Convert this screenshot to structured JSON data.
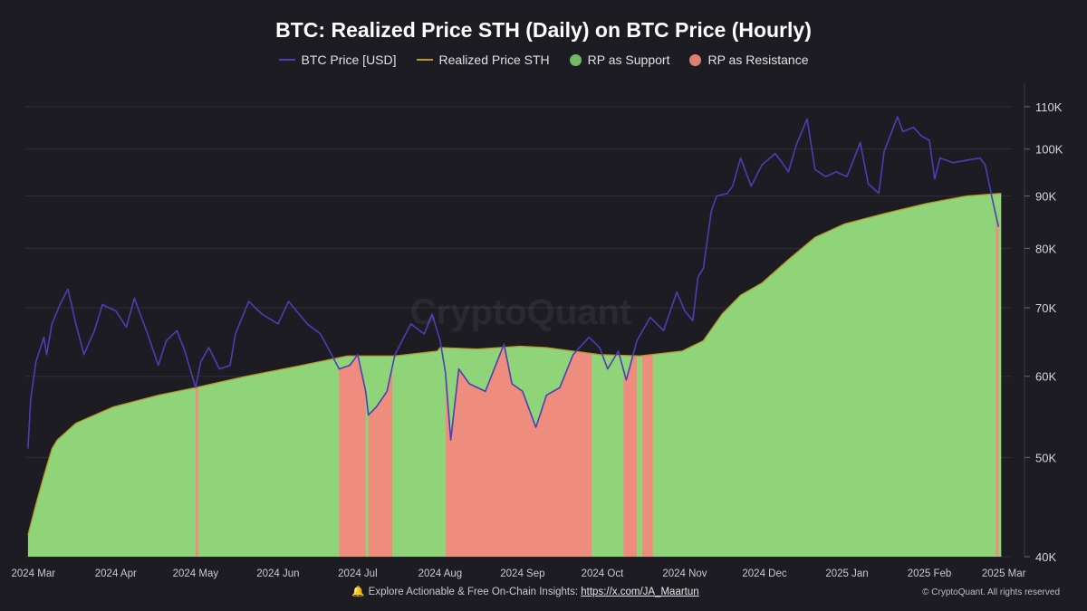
{
  "chart_data": {
    "type": "area",
    "title": "BTC: Realized Price STH (Daily) on BTC Price (Hourly)",
    "legend": [
      "BTC Price [USD]",
      "Realized Price STH",
      "RP as Support",
      "RP as Resistance"
    ],
    "legend_placement": "top-center",
    "y_scale": "log",
    "ylim": [
      40000,
      115000
    ],
    "y_ticks": [
      40000,
      50000,
      60000,
      70000,
      80000,
      90000,
      100000,
      110000
    ],
    "y_tick_labels": [
      "40K",
      "50K",
      "60K",
      "70K",
      "80K",
      "90K",
      "100K",
      "110K"
    ],
    "x_range": [
      "2024-02-27",
      "2025-03-04"
    ],
    "x_ticks": [
      "2024-03-01",
      "2024-04-01",
      "2024-05-01",
      "2024-06-01",
      "2024-07-01",
      "2024-08-01",
      "2024-09-01",
      "2024-10-01",
      "2024-11-01",
      "2024-12-01",
      "2025-01-01",
      "2025-02-01",
      "2025-03-01"
    ],
    "x_tick_labels": [
      "2024 Mar",
      "2024 Apr",
      "2024 May",
      "2024 Jun",
      "2024 Jul",
      "2024 Aug",
      "2024 Sep",
      "2024 Oct",
      "2024 Nov",
      "2024 Dec",
      "2025 Jan",
      "2025 Feb",
      "2025 Mar"
    ],
    "grid": "horizontal",
    "series": [
      {
        "name": "BTC Price [USD]",
        "color": "#4b3fb5",
        "points": [
          [
            "2024-02-28",
            51000
          ],
          [
            "2024-02-29",
            57000
          ],
          [
            "2024-03-02",
            62000
          ],
          [
            "2024-03-05",
            65500
          ],
          [
            "2024-03-06",
            63000
          ],
          [
            "2024-03-08",
            67500
          ],
          [
            "2024-03-11",
            70500
          ],
          [
            "2024-03-14",
            73000
          ],
          [
            "2024-03-17",
            67500
          ],
          [
            "2024-03-20",
            63000
          ],
          [
            "2024-03-24",
            66500
          ],
          [
            "2024-03-27",
            70500
          ],
          [
            "2024-04-01",
            69500
          ],
          [
            "2024-04-05",
            67000
          ],
          [
            "2024-04-08",
            71500
          ],
          [
            "2024-04-13",
            66000
          ],
          [
            "2024-04-17",
            61500
          ],
          [
            "2024-04-20",
            65000
          ],
          [
            "2024-04-24",
            66500
          ],
          [
            "2024-04-27",
            63500
          ],
          [
            "2024-05-01",
            58500
          ],
          [
            "2024-05-03",
            62000
          ],
          [
            "2024-05-06",
            64000
          ],
          [
            "2024-05-10",
            61000
          ],
          [
            "2024-05-14",
            61500
          ],
          [
            "2024-05-16",
            66000
          ],
          [
            "2024-05-21",
            71000
          ],
          [
            "2024-05-26",
            69000
          ],
          [
            "2024-06-01",
            67500
          ],
          [
            "2024-06-05",
            71000
          ],
          [
            "2024-06-08",
            69500
          ],
          [
            "2024-06-12",
            67500
          ],
          [
            "2024-06-17",
            66000
          ],
          [
            "2024-06-24",
            61000
          ],
          [
            "2024-06-28",
            61500
          ],
          [
            "2024-07-01",
            63000
          ],
          [
            "2024-07-04",
            58000
          ],
          [
            "2024-07-05",
            55000
          ],
          [
            "2024-07-08",
            56000
          ],
          [
            "2024-07-12",
            58000
          ],
          [
            "2024-07-15",
            63000
          ],
          [
            "2024-07-21",
            67500
          ],
          [
            "2024-07-26",
            66000
          ],
          [
            "2024-07-29",
            69000
          ],
          [
            "2024-08-01",
            65000
          ],
          [
            "2024-08-03",
            60500
          ],
          [
            "2024-08-05",
            52000
          ],
          [
            "2024-08-08",
            61000
          ],
          [
            "2024-08-12",
            59000
          ],
          [
            "2024-08-18",
            58000
          ],
          [
            "2024-08-25",
            64500
          ],
          [
            "2024-08-28",
            59000
          ],
          [
            "2024-09-01",
            58000
          ],
          [
            "2024-09-06",
            53500
          ],
          [
            "2024-09-10",
            57500
          ],
          [
            "2024-09-15",
            58500
          ],
          [
            "2024-09-20",
            63000
          ],
          [
            "2024-09-26",
            65500
          ],
          [
            "2024-09-30",
            64000
          ],
          [
            "2024-10-03",
            61000
          ],
          [
            "2024-10-07",
            63500
          ],
          [
            "2024-10-10",
            59500
          ],
          [
            "2024-10-14",
            65000
          ],
          [
            "2024-10-19",
            68500
          ],
          [
            "2024-10-24",
            66500
          ],
          [
            "2024-10-29",
            72500
          ],
          [
            "2024-11-01",
            69500
          ],
          [
            "2024-11-04",
            68000
          ],
          [
            "2024-11-06",
            75000
          ],
          [
            "2024-11-08",
            76500
          ],
          [
            "2024-11-11",
            87000
          ],
          [
            "2024-11-13",
            90000
          ],
          [
            "2024-11-17",
            90500
          ],
          [
            "2024-11-19",
            92000
          ],
          [
            "2024-11-22",
            98000
          ],
          [
            "2024-11-26",
            92000
          ],
          [
            "2024-11-30",
            96500
          ],
          [
            "2024-12-05",
            99000
          ],
          [
            "2024-12-07",
            97500
          ],
          [
            "2024-12-10",
            95000
          ],
          [
            "2024-12-13",
            101000
          ],
          [
            "2024-12-17",
            107000
          ],
          [
            "2024-12-20",
            95500
          ],
          [
            "2024-12-24",
            94000
          ],
          [
            "2024-12-28",
            95000
          ],
          [
            "2025-01-01",
            94000
          ],
          [
            "2025-01-06",
            101500
          ],
          [
            "2025-01-09",
            92500
          ],
          [
            "2025-01-13",
            90500
          ],
          [
            "2025-01-15",
            99500
          ],
          [
            "2025-01-20",
            107500
          ],
          [
            "2025-01-22",
            104000
          ],
          [
            "2025-01-26",
            105000
          ],
          [
            "2025-01-29",
            103000
          ],
          [
            "2025-02-01",
            102000
          ],
          [
            "2025-02-03",
            93500
          ],
          [
            "2025-02-05",
            98000
          ],
          [
            "2025-02-10",
            97000
          ],
          [
            "2025-02-15",
            97500
          ],
          [
            "2025-02-20",
            98000
          ],
          [
            "2025-02-22",
            96500
          ],
          [
            "2025-02-25",
            88500
          ],
          [
            "2025-02-27",
            84000
          ]
        ]
      },
      {
        "name": "Realized Price STH",
        "color": "#b89a2a",
        "points": [
          [
            "2024-02-28",
            42000
          ],
          [
            "2024-03-02",
            45000
          ],
          [
            "2024-03-05",
            48000
          ],
          [
            "2024-03-08",
            51000
          ],
          [
            "2024-03-10",
            52000
          ],
          [
            "2024-03-17",
            54000
          ],
          [
            "2024-03-31",
            56000
          ],
          [
            "2024-04-17",
            57500
          ],
          [
            "2024-05-01",
            58500
          ],
          [
            "2024-05-20",
            60000
          ],
          [
            "2024-06-10",
            61500
          ],
          [
            "2024-06-27",
            62800
          ],
          [
            "2024-07-15",
            62800
          ],
          [
            "2024-07-31",
            63500
          ],
          [
            "2024-08-01",
            64000
          ],
          [
            "2024-08-15",
            63800
          ],
          [
            "2024-08-31",
            64200
          ],
          [
            "2024-09-10",
            64000
          ],
          [
            "2024-09-30",
            63000
          ],
          [
            "2024-10-15",
            62800
          ],
          [
            "2024-10-31",
            63500
          ],
          [
            "2024-11-08",
            65000
          ],
          [
            "2024-11-15",
            69000
          ],
          [
            "2024-11-22",
            72000
          ],
          [
            "2024-11-30",
            74000
          ],
          [
            "2024-12-10",
            78000
          ],
          [
            "2024-12-20",
            82000
          ],
          [
            "2024-12-31",
            84500
          ],
          [
            "2025-01-15",
            86500
          ],
          [
            "2025-01-31",
            88500
          ],
          [
            "2025-02-15",
            90000
          ],
          [
            "2025-02-28",
            90500
          ]
        ]
      }
    ],
    "regions": [
      {
        "name": "RP as Support",
        "color": "#90d47a"
      },
      {
        "name": "RP as Resistance",
        "color": "#ee8d7e",
        "ranges": [
          [
            "2024-05-01",
            "2024-05-02"
          ],
          [
            "2024-06-24",
            "2024-07-04"
          ],
          [
            "2024-07-05",
            "2024-07-14"
          ],
          [
            "2024-08-03",
            "2024-09-27"
          ],
          [
            "2024-10-09",
            "2024-10-14"
          ],
          [
            "2024-10-16",
            "2024-10-20"
          ],
          [
            "2025-02-26",
            "2025-02-27"
          ]
        ]
      }
    ]
  },
  "watermark": "CryptoQuant",
  "footer": {
    "text": "Explore Actionable & Free On-Chain Insights:",
    "link": "https://x.com/JA_Maartun",
    "copyright": "© CryptoQuant. All rights reserved"
  },
  "colors": {
    "background": "#1d1c22",
    "grid": "#2f2e36"
  }
}
